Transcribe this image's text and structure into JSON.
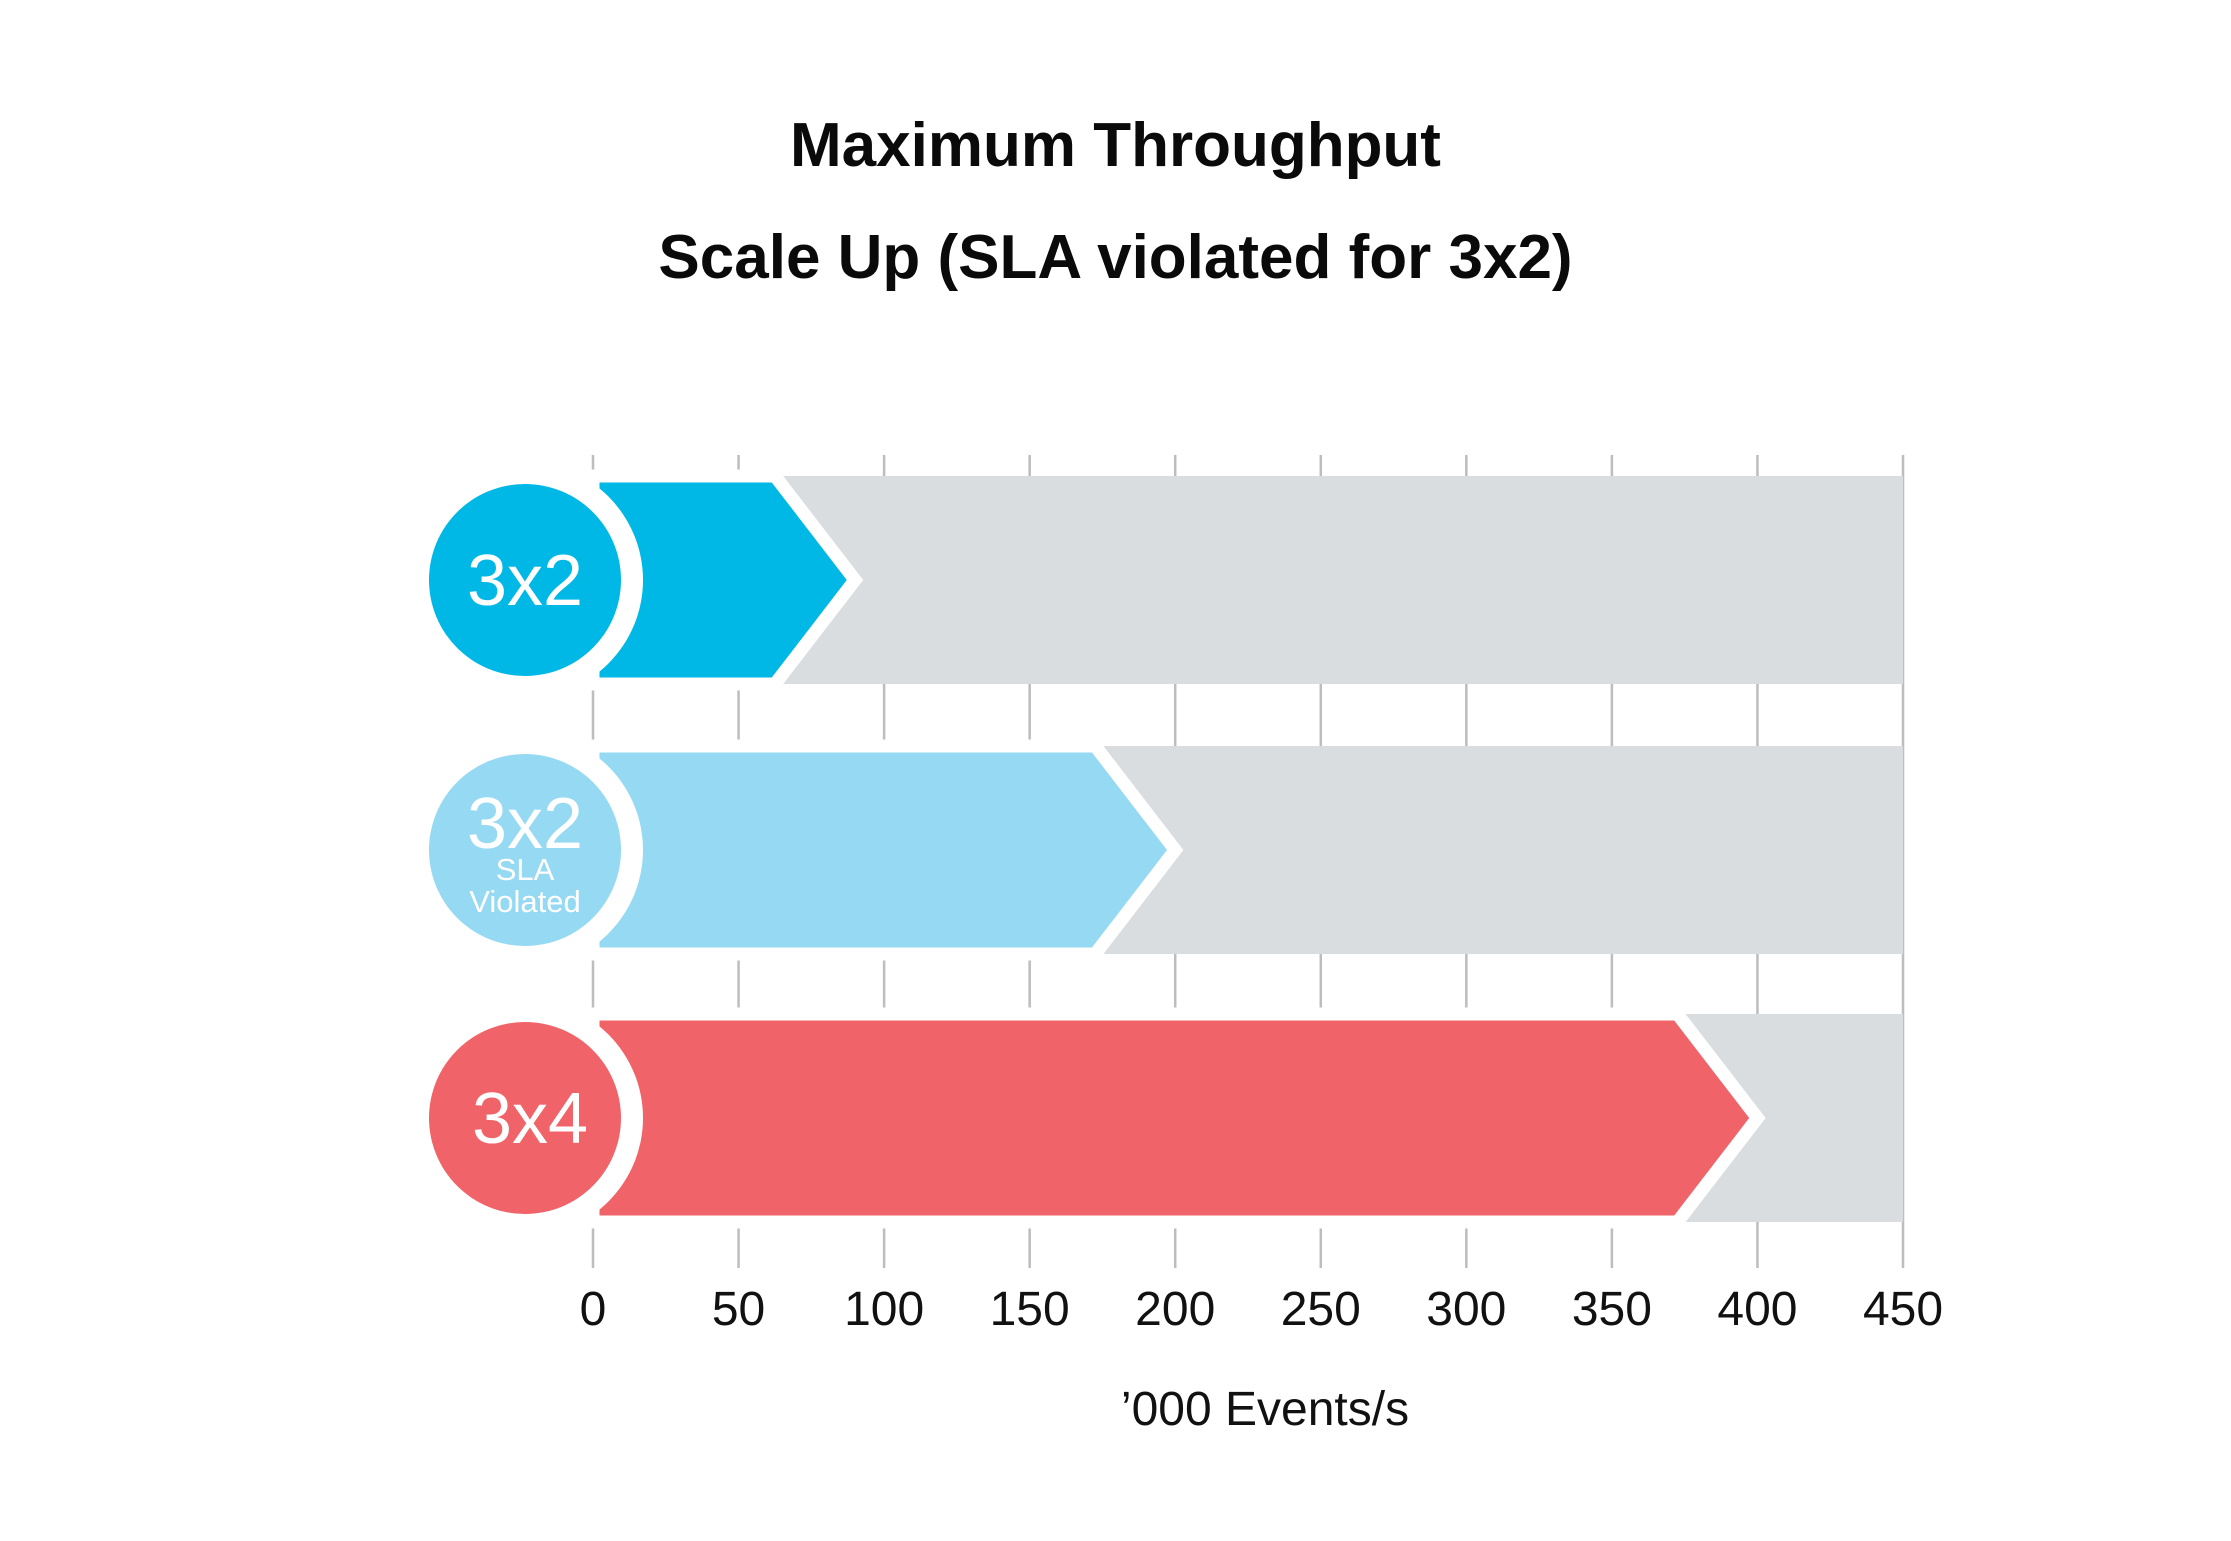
{
  "chart_data": {
    "type": "bar",
    "orientation": "horizontal",
    "title": "Maximum Throughput",
    "subtitle": "Scale Up (SLA violated for 3x2)",
    "xlabel": "’000 Events/s",
    "xlim": [
      0,
      450
    ],
    "xticks": [
      "0",
      "50",
      "100",
      "150",
      "200",
      "250",
      "300",
      "350",
      "400",
      "450"
    ],
    "grid": "vertical",
    "track_color": "#d9dddf",
    "categories": [
      {
        "label": "3x2",
        "sublabel": "",
        "value": 90,
        "color": "#00b8e6"
      },
      {
        "label": "3x2",
        "sublabel": "SLA Violated",
        "value": 200,
        "color": "#96d9f2"
      },
      {
        "label": "3x4",
        "sublabel": "",
        "value": 400,
        "color": "#f06469"
      }
    ]
  }
}
